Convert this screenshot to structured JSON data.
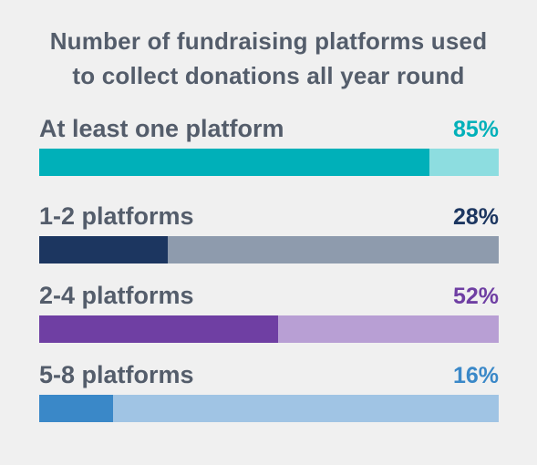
{
  "chart_data": {
    "type": "bar",
    "orientation": "horizontal",
    "title_lines": [
      "Number of fundraising platforms used",
      "to collect donations all year round"
    ],
    "categories": [
      "At least one platform",
      "1-2 platforms",
      "2-4 platforms",
      "5-8 platforms"
    ],
    "values": [
      85,
      28,
      52,
      16
    ],
    "value_labels": [
      "85%",
      "28%",
      "52%",
      "16%"
    ],
    "unit": "%",
    "xlim": [
      0,
      100
    ],
    "colors": {
      "fill": [
        "#00b0b9",
        "#1c3660",
        "#6f3fa3",
        "#3a88c8"
      ],
      "track": [
        "#8ddde0",
        "#8e9bad",
        "#b89fd4",
        "#a0c4e4"
      ],
      "value_text": [
        "#00b0b9",
        "#1c3660",
        "#6f3fa3",
        "#3a88c8"
      ]
    }
  }
}
